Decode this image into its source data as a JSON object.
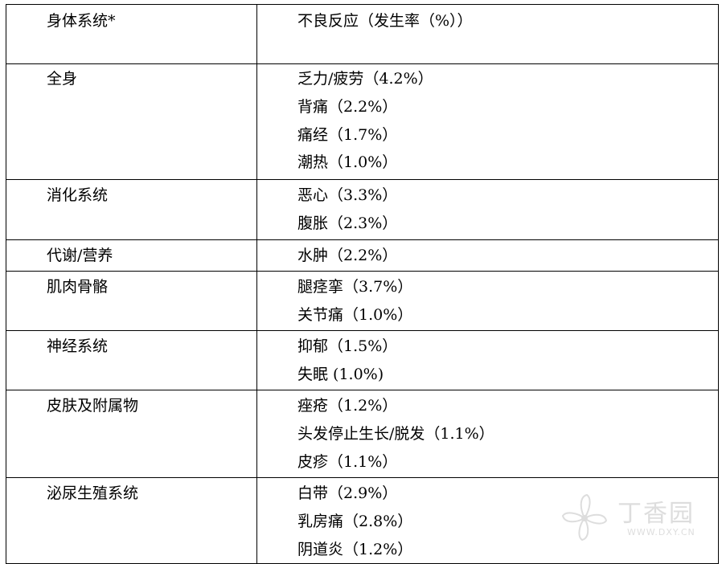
{
  "table": {
    "header": {
      "system": "身体系统*",
      "reactions": "不良反应（发生率（%））"
    },
    "rows": [
      {
        "system": "全身",
        "reactions": [
          "乏力/疲劳（4.2%）",
          "背痛（2.2%）",
          "痛经（1.7%）",
          "潮热（1.0%）"
        ]
      },
      {
        "system": "消化系统",
        "reactions": [
          "恶心（3.3%）",
          "腹胀（2.3%）"
        ]
      },
      {
        "system": "代谢/营养",
        "reactions": [
          "水肿（2.2%）"
        ]
      },
      {
        "system": "肌肉骨骼",
        "reactions": [
          "腿痉挛（3.7%）",
          "关节痛（1.0%）"
        ]
      },
      {
        "system": "神经系统",
        "reactions": [
          "抑郁（1.5%）",
          "失眠 (1.0%)"
        ]
      },
      {
        "system": "皮肤及附属物",
        "reactions": [
          "痤疮（1.2%）",
          "头发停止生长/脱发（1.1%）",
          "皮疹（1.1%）"
        ]
      },
      {
        "system": "泌尿生殖系统",
        "reactions": [
          "白带（2.9%）",
          "乳房痛（2.8%）",
          "阴道炎（1.2%）"
        ]
      }
    ]
  },
  "watermark": {
    "text": "丁香园",
    "url": "WWW.DXY.CN",
    "icon": "flower-logo-icon",
    "color": "#7a7a7a"
  }
}
